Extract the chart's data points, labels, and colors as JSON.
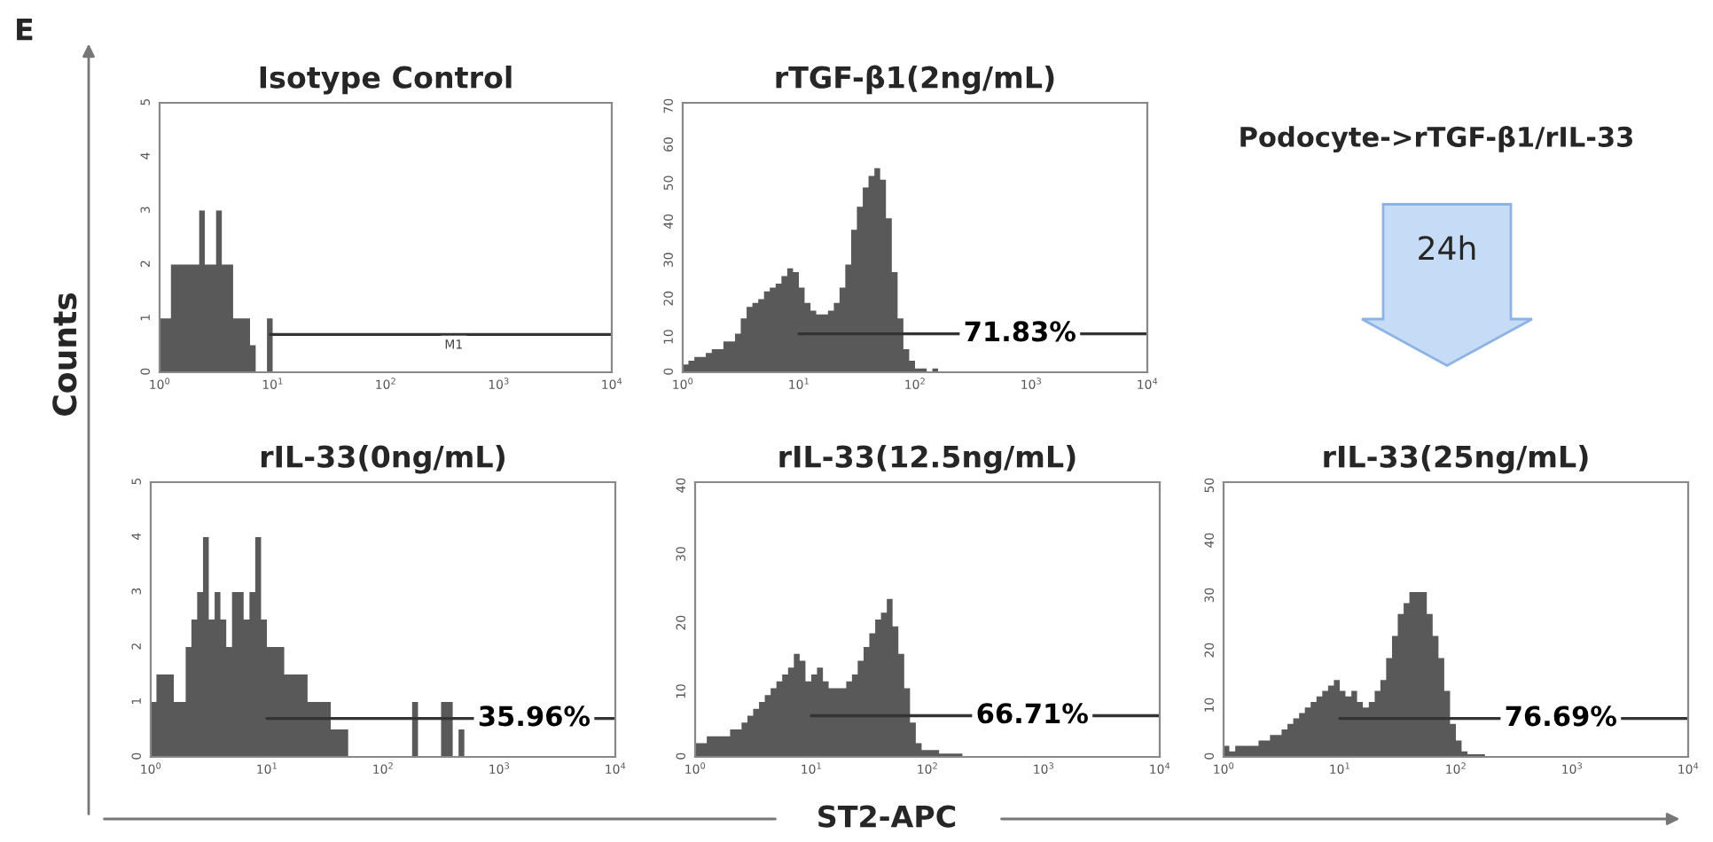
{
  "chart_data": [
    {
      "type": "histogram",
      "title": "Isotype Control",
      "color": "#595959",
      "log": "x",
      "xlim": [
        1,
        10000
      ],
      "ylim": [
        0,
        5
      ],
      "yticks": [
        0,
        1,
        2,
        3,
        4,
        5
      ],
      "xticks": [
        {
          "value": 1,
          "label": "10$^{0}$"
        },
        {
          "value": 10,
          "label": "10$^{1}$"
        },
        {
          "value": 100,
          "label": "10$^{2}$"
        },
        {
          "value": 1000,
          "label": "10$^{3}$"
        },
        {
          "value": 10000,
          "label": "10$^{4}$"
        }
      ],
      "bins": [
        1,
        1.12,
        1.26,
        1.41,
        1.58,
        1.78,
        2,
        2.24,
        2.51,
        2.82,
        3.16,
        3.55,
        3.98,
        4.47,
        5.01,
        5.62,
        6.31,
        7.08,
        7.94,
        8.91,
        10
      ],
      "values": [
        1,
        1,
        2,
        2,
        2,
        2,
        2,
        3,
        2,
        2,
        3,
        2,
        2,
        1,
        1,
        1,
        0.5,
        0,
        0,
        1
      ],
      "series": [
        {
          "type": "line",
          "color": "#333333",
          "x": [
            9.5,
            10000
          ],
          "values": [
            0.7,
            0.7
          ]
        }
      ],
      "annotations": [
        {
          "text": "M1",
          "x": 400,
          "y": 0.5
        }
      ]
    },
    {
      "type": "histogram",
      "title": "rTGF-β1(2ng/mL)",
      "color": "#595959",
      "log": "x",
      "xlim": [
        1,
        10000
      ],
      "ylim": [
        0,
        70
      ],
      "yticks": [
        0,
        10,
        20,
        30,
        40,
        50,
        60,
        70
      ],
      "xticks": [
        {
          "value": 1,
          "label": "10$^{0}$"
        },
        {
          "value": 10,
          "label": "10$^{1}$"
        },
        {
          "value": 100,
          "label": "10$^{2}$"
        },
        {
          "value": 1000,
          "label": "10$^{3}$"
        },
        {
          "value": 10000,
          "label": "10$^{4}$"
        }
      ],
      "bins": [
        1,
        1.12,
        1.26,
        1.41,
        1.58,
        1.78,
        2,
        2.24,
        2.51,
        2.82,
        3.16,
        3.55,
        3.98,
        4.47,
        5.01,
        5.62,
        6.31,
        7.08,
        7.94,
        8.91,
        10,
        11.2,
        12.6,
        14.1,
        15.8,
        17.8,
        20,
        22.4,
        25.1,
        28.2,
        31.6,
        35.5,
        39.8,
        44.7,
        50.1,
        56.2,
        63.1,
        70.8,
        79.4,
        89.1,
        100,
        112,
        126,
        141,
        158,
        178,
        200
      ],
      "values": [
        2,
        3,
        4,
        4,
        5,
        6,
        6,
        8,
        8,
        10,
        14,
        17,
        18,
        19,
        21,
        22,
        23,
        25,
        27,
        26,
        22,
        18,
        16,
        15,
        15,
        16,
        18,
        22,
        28,
        37,
        43,
        48,
        51,
        53,
        50,
        40,
        26,
        14,
        6,
        3,
        1,
        1,
        0,
        1,
        0,
        0
      ],
      "series": [
        {
          "type": "line",
          "color": "#333333",
          "x": [
            10,
            10000
          ],
          "values": [
            10,
            10
          ]
        }
      ],
      "annotations": [
        {
          "text": "71.83%",
          "x": 800,
          "y": 10
        }
      ]
    },
    {
      "type": "other",
      "title": "Podocyte->rTGF-β1/rIL-33",
      "annotations": [
        "24h",
        "E",
        "Counts",
        "ST2-APC"
      ]
    },
    {
      "type": "histogram",
      "title": "rIL-33(0ng/mL)",
      "color": "#595959",
      "log": "x",
      "xlim": [
        1,
        10000
      ],
      "ylim": [
        0,
        5
      ],
      "yticks": [
        0,
        1,
        2,
        3,
        4,
        5
      ],
      "xticks": [
        {
          "value": 1,
          "label": "10$^{0}$"
        },
        {
          "value": 10,
          "label": "10$^{1}$"
        },
        {
          "value": 100,
          "label": "10$^{2}$"
        },
        {
          "value": 1000,
          "label": "10$^{3}$"
        },
        {
          "value": 10000,
          "label": "10$^{4}$"
        }
      ],
      "bins": [
        1,
        1.12,
        1.26,
        1.41,
        1.58,
        1.78,
        2,
        2.24,
        2.51,
        2.82,
        3.16,
        3.55,
        3.98,
        4.47,
        5.01,
        5.62,
        6.31,
        7.08,
        7.94,
        8.91,
        10,
        11.2,
        12.6,
        14.1,
        15.8,
        17.8,
        20,
        22.4,
        25.1,
        28.2,
        31.6,
        35.5,
        39.8,
        44.7,
        50.1,
        56.2,
        63.1,
        70.8,
        79.4,
        89.1,
        100,
        112,
        126,
        141,
        158,
        178,
        200,
        224,
        251,
        282,
        316,
        355,
        398,
        447,
        501,
        562
      ],
      "values": [
        1,
        1.5,
        1.5,
        1.5,
        1,
        1,
        2,
        2.5,
        3,
        4,
        2.5,
        3,
        2.5,
        2,
        3,
        3,
        2.5,
        3,
        4,
        2.5,
        2,
        2,
        2,
        1.5,
        1.5,
        1.5,
        1.5,
        1,
        1,
        1,
        1,
        0.5,
        0.5,
        0.5,
        0,
        0,
        0,
        0,
        0,
        0,
        0,
        0,
        0,
        0,
        0,
        1,
        0,
        0,
        0,
        0,
        1,
        1,
        0,
        0.5,
        0
      ],
      "series": [
        {
          "type": "line",
          "color": "#333333",
          "x": [
            10,
            10000
          ],
          "values": [
            0.7,
            0.7
          ]
        }
      ],
      "annotations": [
        {
          "text": "35.96%",
          "x": 2000,
          "y": 0.7
        }
      ]
    },
    {
      "type": "histogram",
      "title": "rIL-33(12.5ng/mL)",
      "color": "#595959",
      "log": "x",
      "xlim": [
        1,
        10000
      ],
      "ylim": [
        0,
        40
      ],
      "yticks": [
        0,
        10,
        20,
        30,
        40
      ],
      "xticks": [
        {
          "value": 1,
          "label": "10$^{0}$"
        },
        {
          "value": 10,
          "label": "10$^{1}$"
        },
        {
          "value": 100,
          "label": "10$^{2}$"
        },
        {
          "value": 1000,
          "label": "10$^{3}$"
        },
        {
          "value": 10000,
          "label": "10$^{4}$"
        }
      ],
      "bins": [
        1,
        1.12,
        1.26,
        1.41,
        1.58,
        1.78,
        2,
        2.24,
        2.51,
        2.82,
        3.16,
        3.55,
        3.98,
        4.47,
        5.01,
        5.62,
        6.31,
        7.08,
        7.94,
        8.91,
        10,
        11.2,
        12.6,
        14.1,
        15.8,
        17.8,
        20,
        22.4,
        25.1,
        28.2,
        31.6,
        35.5,
        39.8,
        44.7,
        50.1,
        56.2,
        63.1,
        70.8,
        79.4,
        89.1,
        100,
        112,
        126,
        141,
        158,
        178,
        200
      ],
      "values": [
        2,
        2,
        3,
        3,
        3,
        3,
        4,
        4,
        5,
        6,
        7,
        8,
        9,
        10,
        11,
        12,
        13,
        15,
        14,
        11,
        12,
        13,
        11,
        10,
        10,
        10,
        11,
        12,
        14,
        16,
        18,
        20,
        21,
        23,
        19,
        15,
        10,
        5,
        2,
        1,
        1,
        1,
        0.5,
        0.5,
        0.5,
        0.5
      ],
      "series": [
        {
          "type": "line",
          "color": "#333333",
          "x": [
            10,
            10000
          ],
          "values": [
            6,
            6
          ]
        }
      ],
      "annotations": [
        {
          "text": "66.71%",
          "x": 800,
          "y": 6
        }
      ]
    },
    {
      "type": "histogram",
      "title": "rIL-33(25ng/mL)",
      "color": "#595959",
      "log": "x",
      "xlim": [
        1,
        10000
      ],
      "ylim": [
        0,
        50
      ],
      "yticks": [
        0,
        10,
        20,
        30,
        40,
        50
      ],
      "xticks": [
        {
          "value": 1,
          "label": "10$^{0}$"
        },
        {
          "value": 10,
          "label": "10$^{1}$"
        },
        {
          "value": 100,
          "label": "10$^{2}$"
        },
        {
          "value": 1000,
          "label": "10$^{3}$"
        },
        {
          "value": 10000,
          "label": "10$^{4}$"
        }
      ],
      "bins": [
        1,
        1.12,
        1.26,
        1.41,
        1.58,
        1.78,
        2,
        2.24,
        2.51,
        2.82,
        3.16,
        3.55,
        3.98,
        4.47,
        5.01,
        5.62,
        6.31,
        7.08,
        7.94,
        8.91,
        10,
        11.2,
        12.6,
        14.1,
        15.8,
        17.8,
        20,
        22.4,
        25.1,
        28.2,
        31.6,
        35.5,
        39.8,
        44.7,
        50.1,
        56.2,
        63.1,
        70.8,
        79.4,
        89.1,
        100,
        112,
        126,
        141,
        158,
        178,
        200
      ],
      "values": [
        2,
        1,
        2,
        2,
        2,
        2,
        3,
        3,
        4,
        4,
        5,
        6,
        7,
        8,
        9,
        10,
        11,
        12,
        13,
        14,
        12,
        11,
        12,
        10,
        9,
        10,
        12,
        14,
        18,
        22,
        26,
        28,
        30,
        30,
        30,
        26,
        22,
        18,
        12,
        6,
        3,
        1,
        0.5,
        0.5,
        0.5,
        0
      ],
      "series": [
        {
          "type": "line",
          "color": "#333333",
          "x": [
            10,
            10000
          ],
          "values": [
            7,
            7
          ]
        }
      ],
      "annotations": [
        {
          "text": "76.69%",
          "x": 800,
          "y": 7
        }
      ]
    }
  ]
}
